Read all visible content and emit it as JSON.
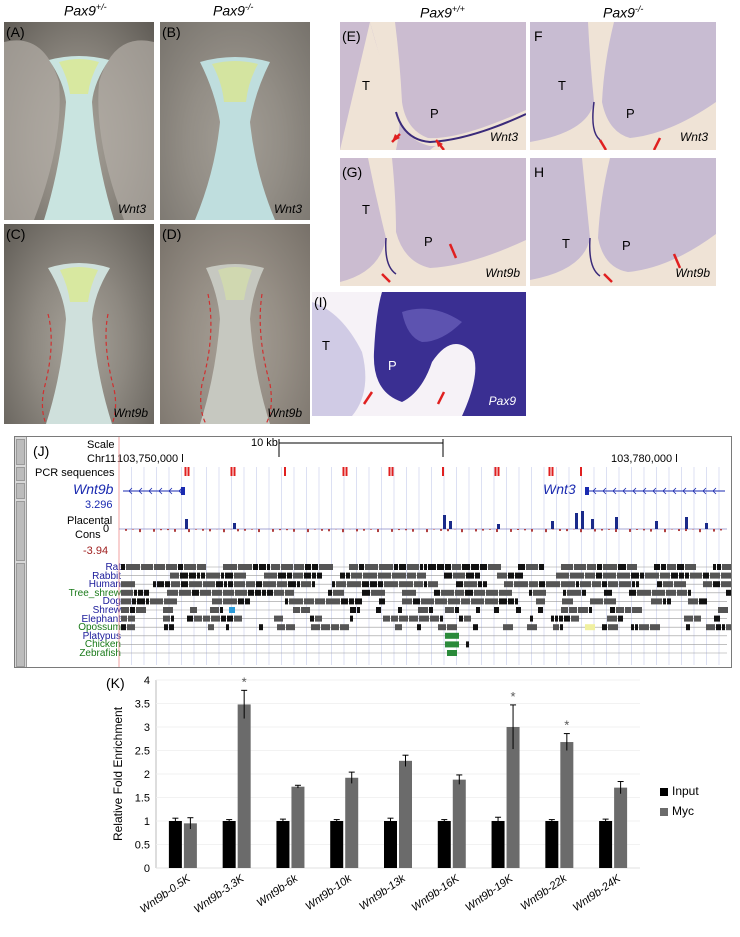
{
  "headers": {
    "left_het": "Pax9",
    "left_het_sup": "+/-",
    "left_ko": "Pax9",
    "left_ko_sup": "-/-",
    "right_wt": "Pax9",
    "right_wt_sup": "+/+",
    "right_ko": "Pax9",
    "right_ko_sup": "-/-"
  },
  "panels": {
    "A": {
      "label": "(A)"
    },
    "B": {
      "label": "(B)",
      "gene": "Wnt3"
    },
    "A_gene": "Wnt3",
    "C": {
      "label": "(C)",
      "gene": "Wnt9b"
    },
    "D": {
      "label": "(D)",
      "gene": "Wnt9b"
    },
    "E": {
      "label": "(E)",
      "gene": "Wnt3",
      "T": "T",
      "P": "P"
    },
    "F": {
      "label": "F",
      "gene": "Wnt3",
      "T": "T",
      "P": "P"
    },
    "G": {
      "label": "(G)",
      "gene": "Wnt9b",
      "T": "T",
      "P": "P"
    },
    "H": {
      "label": "H",
      "gene": "Wnt9b",
      "T": "T",
      "P": "P"
    },
    "I": {
      "label": "(I)",
      "gene": "Pax9",
      "T": "T",
      "P": "P"
    }
  },
  "browser": {
    "label": "(J)",
    "scale_label": "Scale",
    "scale_value": "10 kb",
    "chrom_label": "Chr11",
    "coord_left": "103,750,000 l",
    "coord_right": "103,780,000 l",
    "pcr_label": "PCR sequences",
    "gene_left": "Wnt9b",
    "gene_right": "Wnt3",
    "cons_label_1": "Placental",
    "cons_label_2": "Cons",
    "cons_max": "3.296",
    "cons_zero": "0",
    "cons_min": "-3.94",
    "species": [
      {
        "name": "Rat",
        "color": "#1a1a9a"
      },
      {
        "name": "Rabbit",
        "color": "#1a1a9a"
      },
      {
        "name": "Human",
        "color": "#1a1a9a"
      },
      {
        "name": "Tree_shrew",
        "color": "#1a7a1a"
      },
      {
        "name": "Dog",
        "color": "#1a1a9a"
      },
      {
        "name": "Shrew",
        "color": "#1a1a9a"
      },
      {
        "name": "Elephant",
        "color": "#1a1a9a"
      },
      {
        "name": "Opossum",
        "color": "#1a7a1a"
      },
      {
        "name": "Platypus",
        "color": "#1a1a9a"
      },
      {
        "name": "Chicken",
        "color": "#1a7a1a"
      },
      {
        "name": "Zebrafish",
        "color": "#1a7a1a"
      }
    ]
  },
  "chart_label": "(K)",
  "chart_data": {
    "type": "bar",
    "title": "",
    "xlabel": "",
    "ylabel": "Relative Fold Enrichment",
    "ylim": [
      0,
      4
    ],
    "yticks": [
      "0",
      "0.5",
      "1",
      "1.5",
      "2",
      "2.5",
      "3",
      "3.5",
      "4"
    ],
    "categories": [
      "Wnt9b-0.5K",
      "Wnt9b-3.3K",
      "Wnt9b-6k",
      "Wnt9b-10k",
      "Wnt9b-13k",
      "Wnt9b-16K",
      "Wnt9b-19K",
      "Wnt9b-22k",
      "Wnt9b-24K"
    ],
    "series": [
      {
        "name": "Input",
        "color": "#000000",
        "values": [
          1.0,
          1.0,
          1.0,
          1.0,
          1.0,
          1.0,
          1.0,
          1.0,
          1.0
        ],
        "errors": [
          0.06,
          0.03,
          0.04,
          0.03,
          0.06,
          0.03,
          0.08,
          0.03,
          0.04
        ]
      },
      {
        "name": "Myc",
        "color": "#6b6b6b",
        "values": [
          0.95,
          3.48,
          1.73,
          1.92,
          2.28,
          1.88,
          3.0,
          2.68,
          1.71
        ],
        "errors": [
          0.12,
          0.3,
          0.03,
          0.12,
          0.12,
          0.1,
          0.47,
          0.18,
          0.13
        ]
      }
    ],
    "significant": [
      "*",
      "",
      "",
      "",
      "",
      "",
      "*",
      "*",
      ""
    ],
    "legend_position": "right"
  }
}
